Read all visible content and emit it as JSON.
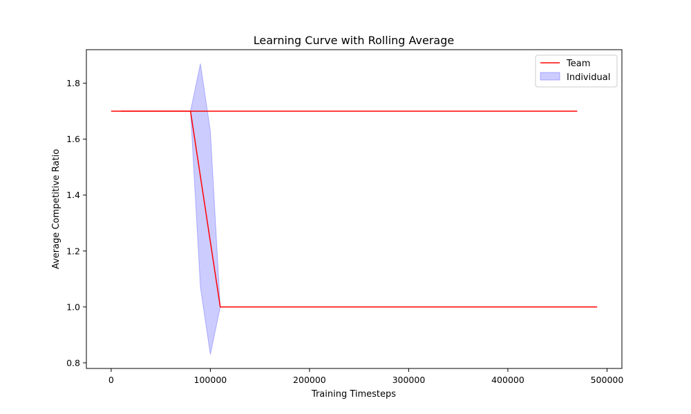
{
  "chart_data": {
    "type": "line",
    "title": "Learning Curve with Rolling Average",
    "xlabel": "Training Timesteps",
    "ylabel": "Average Competitive Ratio",
    "xlim": [
      -25000,
      515000
    ],
    "ylim": [
      0.78,
      1.92
    ],
    "xticks": [
      0,
      100000,
      200000,
      300000,
      400000,
      500000
    ],
    "xtick_labels": [
      "0",
      "100000",
      "200000",
      "300000",
      "400000",
      "500000"
    ],
    "yticks": [
      0.8,
      1.0,
      1.2,
      1.4,
      1.6,
      1.8
    ],
    "ytick_labels": [
      "0.8",
      "1.0",
      "1.2",
      "1.4",
      "1.6",
      "1.8"
    ],
    "grid": false,
    "legend_position": "top-right",
    "series": [
      {
        "name": "Team",
        "kind": "line",
        "color": "#ff0000",
        "x": [
          0,
          80000,
          110000,
          490000
        ],
        "y": [
          1.7,
          1.7,
          1.0,
          1.0
        ]
      },
      {
        "name": "",
        "kind": "line",
        "color": "#ff0000",
        "x": [
          10000,
          470000
        ],
        "y": [
          1.7,
          1.7
        ]
      },
      {
        "name": "Individual",
        "kind": "band",
        "color": "#0000ff",
        "opacity": 0.2,
        "x": [
          80000,
          90000,
          100000,
          110000
        ],
        "upper": [
          1.7,
          1.87,
          1.63,
          1.0
        ],
        "lower": [
          1.7,
          1.07,
          0.83,
          1.0
        ]
      }
    ],
    "legend": [
      {
        "label": "Team",
        "kind": "line",
        "color": "#ff0000"
      },
      {
        "label": "Individual",
        "kind": "band",
        "color": "#0000ff"
      }
    ]
  }
}
